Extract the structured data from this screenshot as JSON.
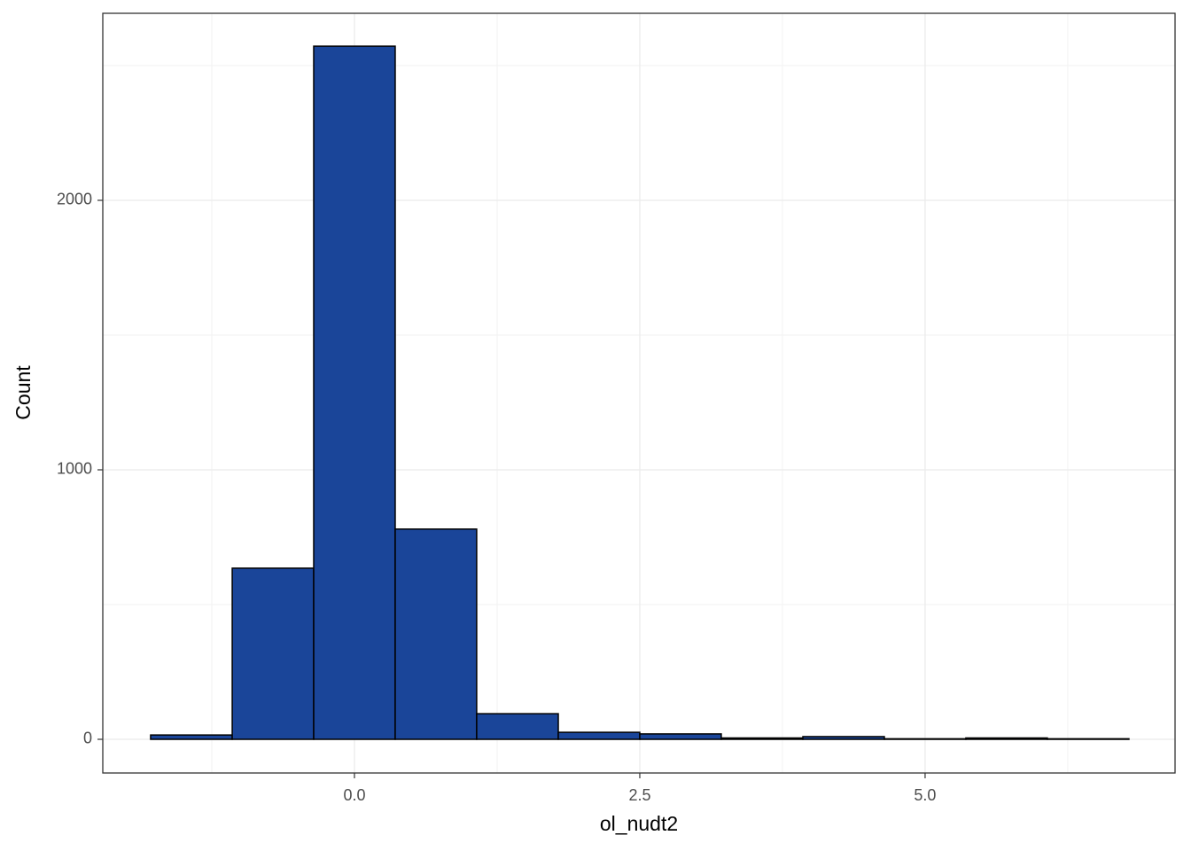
{
  "chart_data": {
    "type": "histogram",
    "x_label": "ol_nudt2",
    "y_label": "Count",
    "bins": [
      -1.786,
      -1.071,
      -0.357,
      0.357,
      1.071,
      1.786,
      2.5,
      3.214,
      3.929,
      4.643,
      5.357,
      6.071,
      6.786
    ],
    "counts": [
      16,
      635,
      2572,
      780,
      95,
      26,
      20,
      5,
      10,
      2,
      5,
      2
    ],
    "color": "#1a4599",
    "edge_color": "#000000",
    "xlim": [
      -2.205,
      7.19
    ],
    "ylim": [
      -125,
      2694
    ],
    "xticks": [
      {
        "value": 0,
        "label": "0.0"
      },
      {
        "value": 2.5,
        "label": "2.5"
      },
      {
        "value": 5,
        "label": "5.0"
      }
    ],
    "yticks": [
      0,
      1000,
      2000
    ],
    "grid": true
  }
}
